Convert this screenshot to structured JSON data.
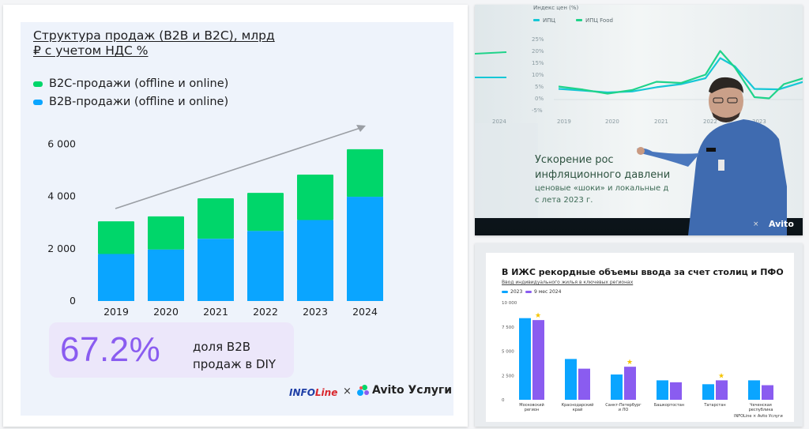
{
  "left": {
    "title": "Структура продаж (B2B и B2C), млрд ₽ с учетом НДС %",
    "legend_b2c": "B2C-продажи (offline и online)",
    "legend_b2b": "B2B-продажи (offline и online)",
    "highlight_value": "67.2%",
    "highlight_text": "доля B2B продаж в DIY",
    "logo_info": "INFO",
    "logo_line": "Line",
    "logo_x": "×",
    "logo_avito": "Avito Услуги"
  },
  "colors": {
    "b2c": "#00d66a",
    "b2b": "#0aa5ff",
    "arrow": "#9a9ea4",
    "purple": "#8a5cf0",
    "teal": "#16c7d6",
    "green": "#1fd38a"
  },
  "chart_data": [
    {
      "type": "bar",
      "stacked": true,
      "categories": [
        "2019",
        "2020",
        "2021",
        "2022",
        "2023",
        "2024"
      ],
      "series": [
        {
          "name": "B2B-продажи (offline и online)",
          "values": [
            1800,
            1970,
            2380,
            2680,
            3100,
            3990
          ]
        },
        {
          "name": "B2C-продажи (offline и online)",
          "values": [
            1250,
            1270,
            1550,
            1460,
            1740,
            1820
          ]
        }
      ],
      "yticks": [
        0,
        2000,
        4000,
        6000
      ],
      "ytick_labels": [
        "0",
        "2 000",
        "4 000",
        "6 000"
      ],
      "ylim": [
        0,
        6200
      ],
      "title": "Структура продаж (B2B и B2C), млрд ₽ с учетом НДС %",
      "legend_position": "top-left",
      "grid": false
    },
    {
      "type": "line",
      "title": "Индекс цен (%)",
      "x_ticks": [
        "2019",
        "2020",
        "2021",
        "2022",
        "2023",
        "2024"
      ],
      "y_ticks": [
        "25%",
        "20%",
        "15%",
        "10%",
        "5%",
        "0%",
        "-5%"
      ],
      "ylim": [
        -5,
        25
      ],
      "series": [
        {
          "name": "ИПЦ",
          "x": [
            2019.0,
            2019.5,
            2020.0,
            2020.5,
            2021.0,
            2021.5,
            2022.0,
            2022.3,
            2022.6,
            2023.0,
            2023.5,
            2024.0
          ],
          "y": [
            4.5,
            3.8,
            3.0,
            3.4,
            5.2,
            6.5,
            9.0,
            17.5,
            14.0,
            4.5,
            4.3,
            7.5
          ]
        },
        {
          "name": "ИПЦ Food",
          "x": [
            2019.0,
            2019.5,
            2020.0,
            2020.5,
            2021.0,
            2021.5,
            2022.0,
            2022.3,
            2022.6,
            2023.0,
            2023.3,
            2023.6,
            2024.0
          ],
          "y": [
            5.5,
            4.2,
            2.5,
            4.0,
            7.5,
            7.0,
            10.5,
            20.5,
            13.5,
            1.0,
            0.5,
            6.5,
            9.0
          ]
        }
      ]
    },
    {
      "type": "bar",
      "title": "В ИЖС рекордные объемы ввода за счет столиц и ПФО",
      "subtitle": "Ввод индивидуального жилья в ключевых регионах",
      "categories": [
        "Московский регион",
        "Краснодарский край",
        "Санкт-Петербург и ЛО",
        "Башкортостан",
        "Татарстан",
        "Чеченская республика"
      ],
      "series": [
        {
          "name": "2023",
          "values": [
            8400,
            4200,
            2600,
            2000,
            1600,
            2000
          ]
        },
        {
          "name": "9 мес 2024",
          "values": [
            8200,
            3200,
            3400,
            1800,
            2000,
            1500
          ]
        }
      ],
      "stars_on": [
        0,
        2,
        4
      ],
      "yticks": [
        "0",
        "2 500",
        "5 000",
        "7 500",
        "10 000"
      ],
      "ylim": [
        0,
        10000
      ],
      "legend_position": "top-left"
    }
  ],
  "top_right": {
    "chart_heading": "Индекс цен (%)",
    "legend_cpi": "ИПЦ",
    "legend_food": "ИПЦ Food",
    "left_x_tick": "2024",
    "slide_heading_1": "Ускорение рос",
    "slide_heading_2": "инфляционного давлени",
    "slide_text_1": "ценовые «шоки» и локальные д",
    "slide_text_2": "с лета 2023 г.",
    "logo_x": "×",
    "logo_avito": "Avito"
  },
  "bottom_right": {
    "title": "В ИЖС рекордные объемы ввода за счет столиц и ПФО",
    "subtitle": "Ввод индивидуального жилья в ключевых регионах",
    "legend_2023": "2023",
    "legend_2024": "9 мес 2024",
    "logos": "INFOLine × Avito Услуги"
  }
}
